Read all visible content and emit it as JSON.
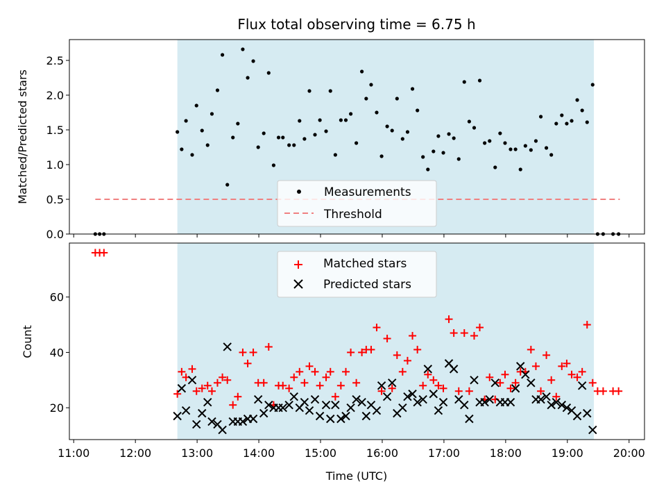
{
  "chart_data": [
    {
      "type": "scatter",
      "title": "Flux total observing time = 6.75 h",
      "xlabel": "",
      "ylabel": "Matched/Predicted stars",
      "xlim": [
        10.93,
        20.25
      ],
      "ylim": [
        0.0,
        2.8
      ],
      "yticks": [
        0.0,
        0.5,
        1.0,
        1.5,
        2.0,
        2.5
      ],
      "ytick_labels": [
        "0.0",
        "0.5",
        "1.0",
        "1.5",
        "2.0",
        "2.5"
      ],
      "xticks_unlabeled": [
        11,
        12,
        13,
        14,
        15,
        16,
        17,
        18,
        19,
        20
      ],
      "shaded_span": [
        12.68,
        19.43
      ],
      "threshold": {
        "value": 0.5,
        "x_range": [
          11.35,
          19.85
        ],
        "color": "#f08080"
      },
      "legend_placement": "lower-center",
      "legend": {
        "measurements": "Measurements",
        "threshold": "Threshold"
      },
      "series": [
        {
          "name": "Measurements",
          "color": "#000000",
          "x": [
            11.35,
            11.42,
            11.49,
            12.68,
            12.75,
            12.82,
            12.92,
            12.99,
            13.08,
            13.17,
            13.24,
            13.33,
            13.41,
            13.49,
            13.58,
            13.66,
            13.74,
            13.82,
            13.91,
            13.99,
            14.08,
            14.16,
            14.24,
            14.32,
            14.39,
            14.49,
            14.57,
            14.66,
            14.74,
            14.82,
            14.91,
            14.99,
            15.09,
            15.16,
            15.24,
            15.33,
            15.41,
            15.49,
            15.58,
            15.67,
            15.74,
            15.82,
            15.91,
            15.99,
            16.08,
            16.16,
            16.24,
            16.33,
            16.41,
            16.49,
            16.57,
            16.66,
            16.74,
            16.83,
            16.91,
            16.99,
            17.08,
            17.16,
            17.24,
            17.33,
            17.41,
            17.49,
            17.58,
            17.66,
            17.74,
            17.83,
            17.91,
            17.99,
            18.08,
            18.16,
            18.24,
            18.32,
            18.41,
            18.49,
            18.57,
            18.66,
            18.74,
            18.82,
            18.91,
            18.99,
            19.07,
            19.16,
            19.24,
            19.32,
            19.41,
            19.49,
            19.58,
            19.74,
            19.83
          ],
          "y": [
            0.0,
            0.0,
            0.0,
            1.47,
            1.22,
            1.63,
            1.14,
            1.85,
            1.49,
            1.28,
            1.73,
            2.07,
            2.58,
            0.71,
            1.39,
            1.59,
            2.66,
            2.25,
            2.49,
            1.25,
            1.45,
            2.32,
            0.99,
            1.39,
            1.39,
            1.28,
            1.28,
            1.63,
            1.37,
            2.06,
            1.43,
            1.64,
            1.48,
            2.06,
            1.14,
            1.64,
            1.64,
            1.73,
            1.31,
            2.34,
            1.95,
            2.15,
            1.75,
            1.12,
            1.55,
            1.49,
            1.95,
            1.37,
            1.47,
            2.09,
            1.78,
            1.11,
            0.93,
            1.19,
            1.41,
            1.17,
            1.44,
            1.38,
            1.08,
            2.19,
            1.62,
            1.53,
            2.21,
            1.31,
            1.34,
            0.96,
            1.45,
            1.31,
            1.22,
            1.22,
            0.93,
            1.27,
            1.21,
            1.34,
            1.69,
            1.24,
            1.14,
            1.59,
            1.71,
            1.59,
            1.63,
            1.93,
            1.78,
            1.61,
            2.15,
            0.0,
            0.0,
            0.0,
            0.0
          ]
        }
      ]
    },
    {
      "type": "scatter",
      "title": "",
      "xlabel": "Time (UTC)",
      "ylabel": "Count",
      "xlim": [
        10.93,
        20.25
      ],
      "ylim": [
        8.5,
        79.5
      ],
      "yticks": [
        20,
        40,
        60
      ],
      "ytick_labels": [
        "20",
        "40",
        "60"
      ],
      "xticks": [
        11,
        12,
        13,
        14,
        15,
        16,
        17,
        18,
        19,
        20
      ],
      "xtick_labels": [
        "11:00",
        "12:00",
        "13:00",
        "14:00",
        "15:00",
        "16:00",
        "17:00",
        "18:00",
        "19:00",
        "20:00"
      ],
      "shaded_span": [
        12.68,
        19.43
      ],
      "legend_placement": "upper-center",
      "series": [
        {
          "name": "Matched stars",
          "color": "#ff0000",
          "x": [
            11.35,
            11.42,
            11.49,
            12.68,
            12.75,
            12.82,
            12.92,
            12.99,
            13.08,
            13.17,
            13.24,
            13.33,
            13.41,
            13.49,
            13.58,
            13.66,
            13.74,
            13.82,
            13.91,
            13.99,
            14.08,
            14.16,
            14.24,
            14.32,
            14.39,
            14.49,
            14.57,
            14.66,
            14.74,
            14.82,
            14.91,
            14.99,
            15.09,
            15.16,
            15.24,
            15.33,
            15.41,
            15.49,
            15.58,
            15.67,
            15.74,
            15.82,
            15.91,
            15.99,
            16.08,
            16.16,
            16.24,
            16.33,
            16.41,
            16.49,
            16.57,
            16.66,
            16.74,
            16.83,
            16.91,
            16.99,
            17.08,
            17.16,
            17.24,
            17.33,
            17.41,
            17.49,
            17.58,
            17.66,
            17.74,
            17.83,
            17.91,
            17.99,
            18.08,
            18.16,
            18.24,
            18.32,
            18.41,
            18.49,
            18.57,
            18.66,
            18.74,
            18.82,
            18.91,
            18.99,
            19.07,
            19.16,
            19.24,
            19.32,
            19.41,
            19.49,
            19.58,
            19.74,
            19.83
          ],
          "y": [
            76,
            76,
            76,
            25,
            33,
            31,
            34,
            26,
            27,
            28,
            26,
            29,
            31,
            30,
            21,
            24,
            40,
            36,
            40,
            29,
            29,
            42,
            21,
            28,
            28,
            27,
            31,
            33,
            29,
            35,
            33,
            28,
            31,
            33,
            24,
            28,
            33,
            40,
            29,
            40,
            41,
            41,
            49,
            26,
            45,
            27,
            39,
            33,
            37,
            46,
            41,
            28,
            32,
            30,
            28,
            27,
            52,
            47,
            26,
            47,
            26,
            46,
            49,
            23,
            31,
            23,
            29,
            32,
            27,
            29,
            33,
            33,
            41,
            35,
            26,
            39,
            30,
            24,
            35,
            36,
            32,
            31,
            33,
            50,
            29,
            26,
            26,
            26,
            26
          ]
        },
        {
          "name": "Predicted stars",
          "color": "#000000",
          "x": [
            12.68,
            12.75,
            12.82,
            12.92,
            12.99,
            13.08,
            13.17,
            13.24,
            13.33,
            13.41,
            13.49,
            13.58,
            13.66,
            13.74,
            13.82,
            13.91,
            13.99,
            14.08,
            14.16,
            14.24,
            14.32,
            14.39,
            14.49,
            14.57,
            14.66,
            14.74,
            14.82,
            14.91,
            14.99,
            15.09,
            15.16,
            15.24,
            15.33,
            15.41,
            15.49,
            15.58,
            15.67,
            15.74,
            15.82,
            15.91,
            15.99,
            16.08,
            16.16,
            16.24,
            16.33,
            16.41,
            16.49,
            16.57,
            16.66,
            16.74,
            16.83,
            16.91,
            16.99,
            17.08,
            17.16,
            17.24,
            17.33,
            17.41,
            17.49,
            17.58,
            17.66,
            17.74,
            17.83,
            17.91,
            17.99,
            18.08,
            18.16,
            18.24,
            18.32,
            18.41,
            18.49,
            18.57,
            18.66,
            18.74,
            18.82,
            18.91,
            18.99,
            19.07,
            19.16,
            19.24,
            19.32,
            19.41
          ],
          "y": [
            17,
            27,
            19,
            30,
            14,
            18,
            22,
            15,
            14,
            12,
            42,
            15,
            15,
            15,
            16,
            16,
            23,
            18,
            21,
            20,
            20,
            20,
            21,
            24,
            20,
            22,
            19,
            23,
            17,
            21,
            16,
            21,
            16,
            17,
            20,
            23,
            22,
            17,
            21,
            19,
            28,
            24,
            29,
            18,
            20,
            24,
            25,
            22,
            23,
            34,
            25,
            19,
            22,
            36,
            34,
            23,
            21,
            16,
            30,
            22,
            22,
            23,
            29,
            22,
            22,
            22,
            27,
            35,
            32,
            29,
            23,
            23,
            24,
            21,
            22,
            21,
            20,
            19,
            17,
            28,
            18,
            12
          ]
        }
      ]
    }
  ]
}
